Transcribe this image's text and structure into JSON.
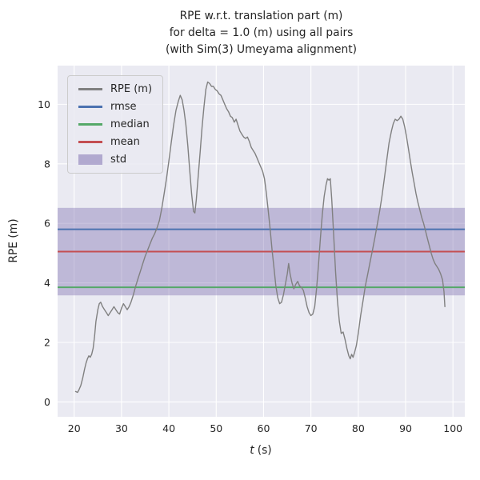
{
  "chart_data": {
    "type": "line",
    "title": "RPE w.r.t. translation part (m) for delta = 1.0 (m) using all pairs (with Sim(3) Umeyama alignment)",
    "title_lines": [
      "RPE w.r.t. translation part (m)",
      "for delta = 1.0 (m) using all pairs",
      "(with Sim(3) Umeyama alignment)"
    ],
    "xlabel": "t (s)",
    "xlabel_parts": {
      "var": "t",
      "unit": "(s)"
    },
    "ylabel": "RPE (m)",
    "xlim": [
      16.5,
      102.5
    ],
    "ylim": [
      -0.5,
      11.3
    ],
    "xticks": [
      20,
      30,
      40,
      50,
      60,
      70,
      80,
      90,
      100
    ],
    "yticks": [
      0,
      2,
      4,
      6,
      8,
      10
    ],
    "grid": true,
    "legend_position": "upper left",
    "axes_background": "#eaeaf2",
    "grid_color": "#ffffff",
    "text_color": "#262626",
    "series": [
      {
        "name": "RPE (m)",
        "type": "line",
        "color": "#808080",
        "points": [
          [
            20.3,
            0.35
          ],
          [
            20.7,
            0.32
          ],
          [
            21.0,
            0.4
          ],
          [
            21.4,
            0.55
          ],
          [
            21.8,
            0.8
          ],
          [
            22.2,
            1.1
          ],
          [
            22.5,
            1.3
          ],
          [
            22.8,
            1.45
          ],
          [
            23.1,
            1.55
          ],
          [
            23.4,
            1.5
          ],
          [
            23.7,
            1.6
          ],
          [
            24.0,
            1.8
          ],
          [
            24.3,
            2.2
          ],
          [
            24.6,
            2.7
          ],
          [
            25.0,
            3.1
          ],
          [
            25.3,
            3.3
          ],
          [
            25.6,
            3.35
          ],
          [
            26.0,
            3.2
          ],
          [
            26.4,
            3.1
          ],
          [
            26.8,
            3.0
          ],
          [
            27.2,
            2.9
          ],
          [
            27.6,
            3.0
          ],
          [
            28.0,
            3.1
          ],
          [
            28.4,
            3.2
          ],
          [
            28.8,
            3.1
          ],
          [
            29.2,
            3.0
          ],
          [
            29.6,
            2.95
          ],
          [
            30.0,
            3.15
          ],
          [
            30.4,
            3.3
          ],
          [
            30.8,
            3.2
          ],
          [
            31.2,
            3.1
          ],
          [
            31.6,
            3.2
          ],
          [
            32.0,
            3.35
          ],
          [
            32.5,
            3.6
          ],
          [
            33.0,
            3.9
          ],
          [
            33.5,
            4.15
          ],
          [
            34.0,
            4.4
          ],
          [
            34.5,
            4.65
          ],
          [
            35.0,
            4.9
          ],
          [
            35.5,
            5.1
          ],
          [
            36.0,
            5.3
          ],
          [
            36.5,
            5.5
          ],
          [
            37.0,
            5.65
          ],
          [
            37.5,
            5.85
          ],
          [
            38.0,
            6.1
          ],
          [
            38.5,
            6.5
          ],
          [
            39.0,
            7.0
          ],
          [
            39.5,
            7.5
          ],
          [
            40.0,
            8.1
          ],
          [
            40.5,
            8.7
          ],
          [
            41.0,
            9.3
          ],
          [
            41.5,
            9.8
          ],
          [
            42.0,
            10.1
          ],
          [
            42.4,
            10.3
          ],
          [
            42.8,
            10.15
          ],
          [
            43.2,
            9.8
          ],
          [
            43.6,
            9.3
          ],
          [
            44.0,
            8.6
          ],
          [
            44.4,
            7.8
          ],
          [
            44.8,
            7.0
          ],
          [
            45.2,
            6.4
          ],
          [
            45.5,
            6.35
          ],
          [
            45.8,
            6.8
          ],
          [
            46.2,
            7.6
          ],
          [
            46.6,
            8.4
          ],
          [
            47.0,
            9.2
          ],
          [
            47.4,
            9.9
          ],
          [
            47.8,
            10.5
          ],
          [
            48.2,
            10.75
          ],
          [
            48.6,
            10.7
          ],
          [
            49.0,
            10.6
          ],
          [
            49.4,
            10.6
          ],
          [
            49.8,
            10.5
          ],
          [
            50.2,
            10.45
          ],
          [
            50.6,
            10.35
          ],
          [
            51.0,
            10.3
          ],
          [
            51.4,
            10.15
          ],
          [
            51.8,
            10.0
          ],
          [
            52.2,
            9.85
          ],
          [
            52.6,
            9.75
          ],
          [
            53.0,
            9.6
          ],
          [
            53.4,
            9.55
          ],
          [
            53.8,
            9.4
          ],
          [
            54.2,
            9.5
          ],
          [
            54.6,
            9.3
          ],
          [
            55.0,
            9.1
          ],
          [
            55.4,
            9.0
          ],
          [
            55.8,
            8.9
          ],
          [
            56.2,
            8.85
          ],
          [
            56.6,
            8.9
          ],
          [
            57.0,
            8.75
          ],
          [
            57.4,
            8.55
          ],
          [
            57.8,
            8.45
          ],
          [
            58.2,
            8.35
          ],
          [
            58.6,
            8.2
          ],
          [
            59.0,
            8.05
          ],
          [
            59.4,
            7.9
          ],
          [
            59.8,
            7.75
          ],
          [
            60.2,
            7.5
          ],
          [
            60.6,
            7.0
          ],
          [
            61.0,
            6.4
          ],
          [
            61.4,
            5.8
          ],
          [
            61.8,
            5.1
          ],
          [
            62.2,
            4.5
          ],
          [
            62.6,
            3.9
          ],
          [
            63.0,
            3.5
          ],
          [
            63.4,
            3.3
          ],
          [
            63.8,
            3.35
          ],
          [
            64.2,
            3.6
          ],
          [
            64.6,
            3.95
          ],
          [
            65.0,
            4.3
          ],
          [
            65.3,
            4.65
          ],
          [
            65.6,
            4.3
          ],
          [
            66.0,
            4.0
          ],
          [
            66.4,
            3.8
          ],
          [
            66.8,
            3.95
          ],
          [
            67.2,
            4.05
          ],
          [
            67.6,
            3.9
          ],
          [
            68.0,
            3.85
          ],
          [
            68.4,
            3.75
          ],
          [
            68.8,
            3.5
          ],
          [
            69.2,
            3.2
          ],
          [
            69.6,
            3.0
          ],
          [
            70.0,
            2.9
          ],
          [
            70.4,
            2.95
          ],
          [
            70.8,
            3.2
          ],
          [
            71.2,
            3.8
          ],
          [
            71.6,
            4.6
          ],
          [
            72.0,
            5.5
          ],
          [
            72.4,
            6.3
          ],
          [
            72.8,
            6.9
          ],
          [
            73.2,
            7.3
          ],
          [
            73.5,
            7.5
          ],
          [
            73.8,
            7.45
          ],
          [
            74.1,
            7.5
          ],
          [
            74.4,
            6.8
          ],
          [
            74.8,
            5.6
          ],
          [
            75.2,
            4.4
          ],
          [
            75.6,
            3.4
          ],
          [
            76.0,
            2.7
          ],
          [
            76.4,
            2.3
          ],
          [
            76.8,
            2.35
          ],
          [
            77.2,
            2.1
          ],
          [
            77.6,
            1.8
          ],
          [
            78.0,
            1.55
          ],
          [
            78.3,
            1.45
          ],
          [
            78.6,
            1.6
          ],
          [
            78.9,
            1.5
          ],
          [
            79.2,
            1.65
          ],
          [
            79.6,
            1.9
          ],
          [
            80.0,
            2.3
          ],
          [
            80.5,
            2.9
          ],
          [
            81.0,
            3.4
          ],
          [
            81.5,
            3.9
          ],
          [
            82.0,
            4.3
          ],
          [
            82.5,
            4.7
          ],
          [
            83.0,
            5.1
          ],
          [
            83.5,
            5.5
          ],
          [
            84.0,
            5.95
          ],
          [
            84.5,
            6.4
          ],
          [
            85.0,
            6.9
          ],
          [
            85.5,
            7.5
          ],
          [
            86.0,
            8.1
          ],
          [
            86.5,
            8.7
          ],
          [
            87.0,
            9.1
          ],
          [
            87.4,
            9.35
          ],
          [
            87.8,
            9.5
          ],
          [
            88.2,
            9.45
          ],
          [
            88.6,
            9.5
          ],
          [
            89.0,
            9.6
          ],
          [
            89.4,
            9.5
          ],
          [
            89.8,
            9.25
          ],
          [
            90.2,
            8.9
          ],
          [
            90.6,
            8.5
          ],
          [
            91.0,
            8.1
          ],
          [
            91.4,
            7.7
          ],
          [
            91.8,
            7.35
          ],
          [
            92.2,
            7.0
          ],
          [
            92.6,
            6.7
          ],
          [
            93.0,
            6.45
          ],
          [
            93.4,
            6.2
          ],
          [
            93.8,
            6.0
          ],
          [
            94.2,
            5.75
          ],
          [
            94.6,
            5.5
          ],
          [
            95.0,
            5.25
          ],
          [
            95.4,
            5.0
          ],
          [
            95.8,
            4.8
          ],
          [
            96.2,
            4.65
          ],
          [
            96.6,
            4.55
          ],
          [
            97.0,
            4.45
          ],
          [
            97.4,
            4.3
          ],
          [
            97.8,
            4.1
          ],
          [
            98.1,
            3.7
          ],
          [
            98.3,
            3.2
          ]
        ]
      },
      {
        "name": "rmse",
        "type": "hline",
        "color": "#4c72b0",
        "value": 5.8
      },
      {
        "name": "median",
        "type": "hline",
        "color": "#55a868",
        "value": 3.85
      },
      {
        "name": "mean",
        "type": "hline",
        "color": "#c44e52",
        "value": 5.05
      },
      {
        "name": "std",
        "type": "band",
        "color": "#8172b2",
        "alpha": 0.42,
        "lower": 3.58,
        "upper": 6.52
      }
    ]
  }
}
